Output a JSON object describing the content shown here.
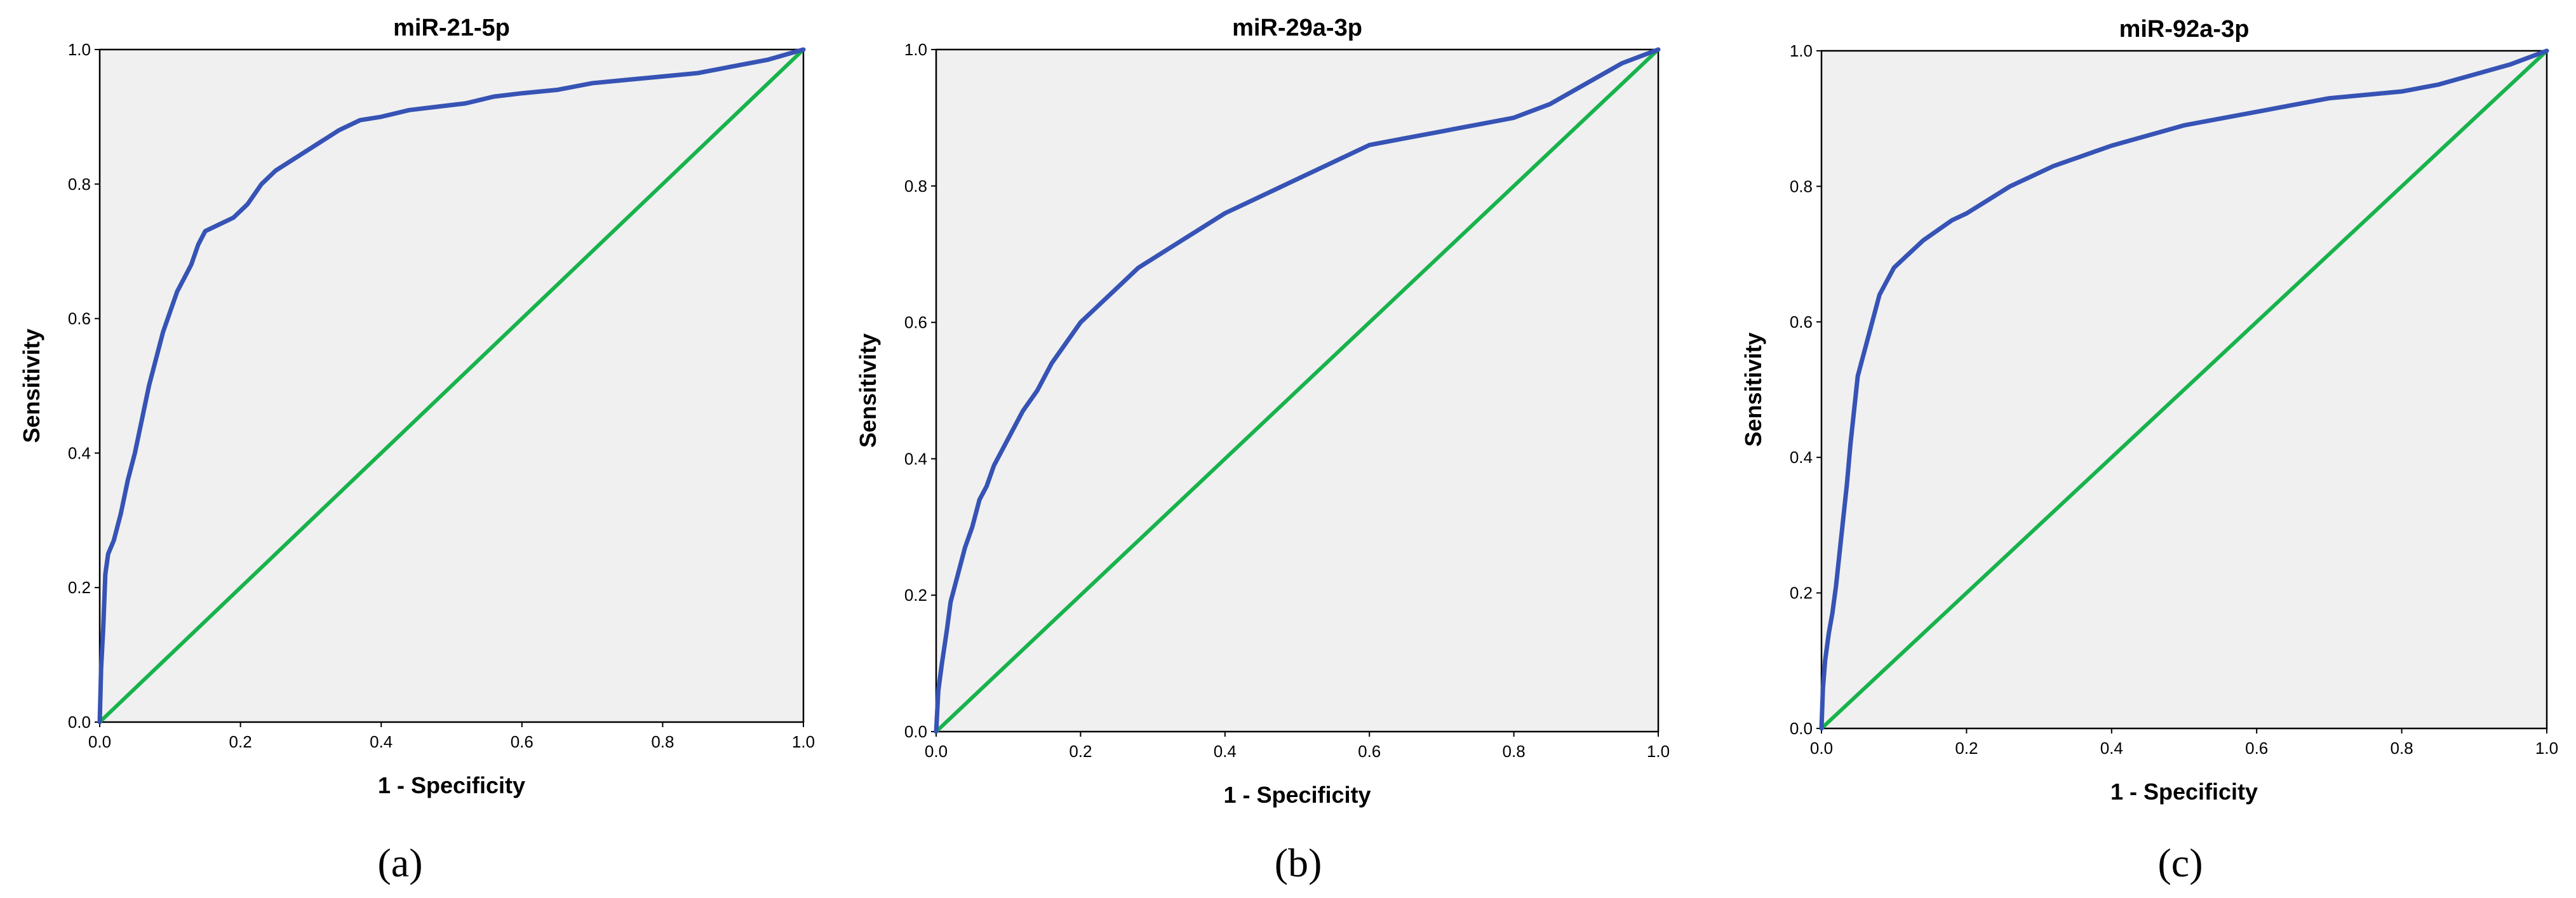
{
  "colors": {
    "roc": "#3653b5",
    "reference": "#17b34c",
    "plot_background": "#f0f0f0"
  },
  "chart_data": [
    {
      "type": "line",
      "panel": "(a)",
      "title": "miR-21-5p",
      "xlabel": "1 - Specificity",
      "ylabel": "Sensitivity",
      "xlim": [
        0,
        1
      ],
      "ylim": [
        0,
        1
      ],
      "xticks": [
        "0.0",
        "0.2",
        "0.4",
        "0.6",
        "0.8",
        "1.0"
      ],
      "yticks": [
        "0.0",
        "0.2",
        "0.4",
        "0.6",
        "0.8",
        "1.0"
      ],
      "grid": false,
      "series": [
        {
          "x": [
            0,
            0.002,
            0.005,
            0.008,
            0.012,
            0.02,
            0.03,
            0.04,
            0.05,
            0.06,
            0.07,
            0.08,
            0.09,
            0.1,
            0.11,
            0.12,
            0.13,
            0.14,
            0.15,
            0.17,
            0.19,
            0.21,
            0.23,
            0.25,
            0.28,
            0.31,
            0.34,
            0.37,
            0.4,
            0.44,
            0.48,
            0.52,
            0.56,
            0.6,
            0.65,
            0.7,
            0.75,
            0.8,
            0.85,
            0.9,
            0.95,
            1.0
          ],
          "y": [
            0,
            0.08,
            0.14,
            0.22,
            0.25,
            0.27,
            0.31,
            0.36,
            0.4,
            0.45,
            0.5,
            0.54,
            0.58,
            0.61,
            0.64,
            0.66,
            0.68,
            0.71,
            0.73,
            0.74,
            0.75,
            0.77,
            0.8,
            0.82,
            0.84,
            0.86,
            0.88,
            0.895,
            0.9,
            0.91,
            0.915,
            0.92,
            0.93,
            0.935,
            0.94,
            0.95,
            0.955,
            0.96,
            0.965,
            0.975,
            0.985,
            1.0
          ]
        },
        {
          "x": [
            0,
            1
          ],
          "y": [
            0,
            1
          ]
        }
      ]
    },
    {
      "type": "line",
      "panel": "(b)",
      "title": "miR-29a-3p",
      "xlabel": "1 - Specificity",
      "ylabel": "Sensitivity",
      "xlim": [
        0,
        1
      ],
      "ylim": [
        0,
        1
      ],
      "xticks": [
        "0.0",
        "0.2",
        "0.4",
        "0.6",
        "0.8",
        "1.0"
      ],
      "yticks": [
        "0.0",
        "0.2",
        "0.4",
        "0.6",
        "0.8",
        "1.0"
      ],
      "grid": false,
      "series": [
        {
          "x": [
            0,
            0.003,
            0.008,
            0.015,
            0.02,
            0.03,
            0.04,
            0.05,
            0.06,
            0.07,
            0.08,
            0.1,
            0.12,
            0.14,
            0.16,
            0.18,
            0.2,
            0.22,
            0.25,
            0.28,
            0.31,
            0.34,
            0.37,
            0.4,
            0.44,
            0.48,
            0.52,
            0.56,
            0.6,
            0.65,
            0.7,
            0.75,
            0.8,
            0.85,
            0.9,
            0.95,
            1.0
          ],
          "y": [
            0,
            0.06,
            0.1,
            0.15,
            0.19,
            0.23,
            0.27,
            0.3,
            0.34,
            0.36,
            0.39,
            0.43,
            0.47,
            0.5,
            0.54,
            0.57,
            0.6,
            0.62,
            0.65,
            0.68,
            0.7,
            0.72,
            0.74,
            0.76,
            0.78,
            0.8,
            0.82,
            0.84,
            0.86,
            0.87,
            0.88,
            0.89,
            0.9,
            0.92,
            0.95,
            0.98,
            1.0
          ]
        },
        {
          "x": [
            0,
            1
          ],
          "y": [
            0,
            1
          ]
        }
      ]
    },
    {
      "type": "line",
      "panel": "(c)",
      "title": "miR-92a-3p",
      "xlabel": "1 - Specificity",
      "ylabel": "Sensitivity",
      "xlim": [
        0,
        1
      ],
      "ylim": [
        0,
        1
      ],
      "xticks": [
        "0.0",
        "0.2",
        "0.4",
        "0.6",
        "0.8",
        "1.0"
      ],
      "yticks": [
        "0.0",
        "0.2",
        "0.4",
        "0.6",
        "0.8",
        "1.0"
      ],
      "grid": false,
      "series": [
        {
          "x": [
            0,
            0.002,
            0.005,
            0.01,
            0.015,
            0.02,
            0.025,
            0.03,
            0.035,
            0.04,
            0.045,
            0.05,
            0.055,
            0.06,
            0.065,
            0.07,
            0.075,
            0.08,
            0.09,
            0.1,
            0.12,
            0.14,
            0.16,
            0.18,
            0.2,
            0.23,
            0.26,
            0.29,
            0.32,
            0.36,
            0.4,
            0.45,
            0.5,
            0.55,
            0.6,
            0.65,
            0.7,
            0.75,
            0.8,
            0.85,
            0.9,
            0.95,
            1.0
          ],
          "y": [
            0,
            0.06,
            0.1,
            0.14,
            0.17,
            0.21,
            0.26,
            0.31,
            0.36,
            0.42,
            0.47,
            0.52,
            0.54,
            0.56,
            0.58,
            0.6,
            0.62,
            0.64,
            0.66,
            0.68,
            0.7,
            0.72,
            0.735,
            0.75,
            0.76,
            0.78,
            0.8,
            0.815,
            0.83,
            0.845,
            0.86,
            0.875,
            0.89,
            0.9,
            0.91,
            0.92,
            0.93,
            0.935,
            0.94,
            0.95,
            0.965,
            0.98,
            1.0
          ]
        },
        {
          "x": [
            0,
            1
          ],
          "y": [
            0,
            1
          ]
        }
      ]
    }
  ]
}
